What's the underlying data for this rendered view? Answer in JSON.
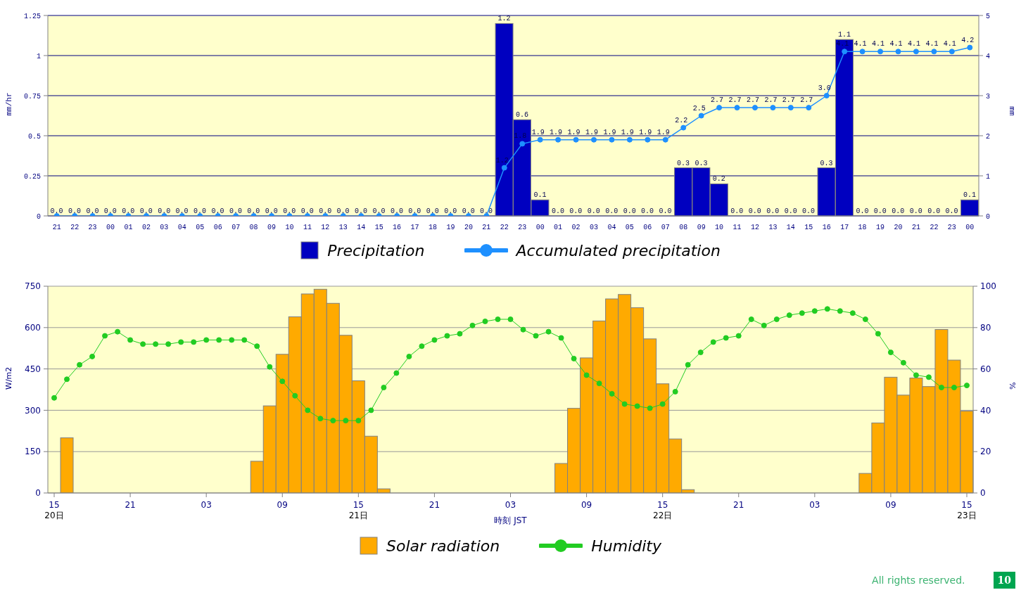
{
  "chart_data": [
    {
      "type": "bar",
      "ylabel": "mm/hr",
      "y2label": "mm",
      "categories": [
        "21",
        "22",
        "23",
        "00",
        "01",
        "02",
        "03",
        "04",
        "05",
        "06",
        "07",
        "08",
        "09",
        "10",
        "11",
        "12",
        "13",
        "14",
        "15",
        "16",
        "17",
        "18",
        "19",
        "20",
        "21",
        "22",
        "23",
        "00",
        "01",
        "02",
        "03",
        "04",
        "05",
        "06",
        "07",
        "08",
        "09",
        "10",
        "11",
        "12",
        "13",
        "14",
        "15",
        "16",
        "17",
        "18",
        "19",
        "20",
        "21",
        "22",
        "23",
        "00"
      ],
      "series": [
        {
          "name": "Precipitation",
          "color": "#0000c0",
          "values": [
            0,
            0,
            0,
            0,
            0,
            0,
            0,
            0,
            0,
            0,
            0,
            0,
            0,
            0,
            0,
            0,
            0,
            0,
            0,
            0,
            0,
            0,
            0,
            0,
            0,
            1.2,
            0.6,
            0.1,
            0,
            0,
            0,
            0,
            0,
            0,
            0,
            0.3,
            0.3,
            0.2,
            0,
            0,
            0,
            0,
            0,
            0.3,
            1.1,
            0,
            0,
            0,
            0,
            0,
            0,
            0.1
          ],
          "value_labels": [
            "0.0",
            "0.0",
            "0.0",
            "0.0",
            "0.0",
            "0.0",
            "0.0",
            "0.0",
            "0.0",
            "0.0",
            "0.0",
            "0.0",
            "0.0",
            "0.0",
            "0.0",
            "0.0",
            "0.0",
            "0.0",
            "0.0",
            "0.0",
            "0.0",
            "0.0",
            "0.0",
            "0.0",
            "0.0",
            "1.2",
            "0.6",
            "0.1",
            "0.0",
            "0.0",
            "0.0",
            "0.0",
            "0.0",
            "0.0",
            "0.0",
            "0.3",
            "0.3",
            "0.2",
            "0.0",
            "0.0",
            "0.0",
            "0.0",
            "0.0",
            "0.3",
            "1.1",
            "0.0",
            "0.0",
            "0.0",
            "0.0",
            "0.0",
            "0.0",
            "0.1"
          ]
        },
        {
          "name": "Accumulated precipitation",
          "type": "line",
          "axis": "y2",
          "color": "#1e90ff",
          "values": [
            0,
            0,
            0,
            0,
            0,
            0,
            0,
            0,
            0,
            0,
            0,
            0,
            0,
            0,
            0,
            0,
            0,
            0,
            0,
            0,
            0,
            0,
            0,
            0,
            0,
            1.2,
            1.8,
            1.9,
            1.9,
            1.9,
            1.9,
            1.9,
            1.9,
            1.9,
            1.9,
            2.2,
            2.5,
            2.7,
            2.7,
            2.7,
            2.7,
            2.7,
            2.7,
            3.0,
            4.1,
            4.1,
            4.1,
            4.1,
            4.1,
            4.1,
            4.1,
            4.2
          ],
          "value_labels": [
            null,
            null,
            null,
            null,
            null,
            null,
            null,
            null,
            null,
            null,
            null,
            null,
            null,
            null,
            null,
            null,
            null,
            null,
            null,
            null,
            null,
            null,
            null,
            null,
            null,
            "1.2",
            "1.8",
            "1.9",
            "1.9",
            "1.9",
            "1.9",
            "1.9",
            "1.9",
            "1.9",
            "1.9",
            "2.2",
            "2.5",
            "2.7",
            "2.7",
            "2.7",
            "2.7",
            "2.7",
            "2.7",
            "3.0",
            "4.1",
            "4.1",
            "4.1",
            "4.1",
            "4.1",
            "4.1",
            "4.1",
            "4.2"
          ]
        }
      ],
      "ylim": [
        0,
        1.25
      ],
      "yticks": [
        0,
        0.25,
        0.5,
        0.75,
        1,
        1.25
      ],
      "y2lim": [
        0,
        5
      ],
      "y2ticks": [
        0,
        1,
        2,
        3,
        4,
        5
      ],
      "grid": "y",
      "legend": "bottom",
      "marker": "circle"
    },
    {
      "type": "bar",
      "xlabel": "時刻 JST",
      "ylabel": "W/m2",
      "y2label": "%",
      "categories": [
        "15\n20日",
        null,
        null,
        null,
        null,
        null,
        "21",
        null,
        null,
        null,
        null,
        null,
        "03",
        null,
        null,
        null,
        null,
        null,
        "09",
        null,
        null,
        null,
        null,
        null,
        "15\n21日",
        null,
        null,
        null,
        null,
        null,
        "21",
        null,
        null,
        null,
        null,
        null,
        "03",
        null,
        null,
        null,
        null,
        null,
        "09",
        null,
        null,
        null,
        null,
        null,
        "15\n22日",
        null,
        null,
        null,
        null,
        null,
        "21",
        null,
        null,
        null,
        null,
        null,
        "03",
        null,
        null,
        null,
        null,
        null,
        "09",
        null,
        null,
        null,
        null,
        null,
        "15\n23日"
      ],
      "series": [
        {
          "name": "Solar radiation",
          "color": "#ffaa00",
          "values": [
            0,
            200,
            0,
            0,
            0,
            0,
            0,
            0,
            0,
            0,
            0,
            0,
            0,
            0,
            0,
            0,
            115,
            316,
            503,
            639,
            722,
            739,
            688,
            572,
            407,
            206,
            15,
            0,
            0,
            0,
            0,
            0,
            0,
            0,
            0,
            0,
            0,
            0,
            0,
            0,
            107,
            307,
            490,
            624,
            704,
            720,
            672,
            559,
            396,
            196,
            12,
            0,
            0,
            0,
            0,
            0,
            0,
            0,
            0,
            0,
            0,
            0,
            0,
            0,
            71,
            254,
            420,
            355,
            417,
            386,
            593,
            482,
            297
          ]
        },
        {
          "name": "Humidity",
          "type": "line",
          "axis": "y2",
          "color": "#22cc22",
          "values": [
            46,
            55,
            62,
            66,
            76,
            78,
            74,
            72,
            72,
            72,
            73,
            73,
            74,
            74,
            74,
            74,
            71,
            61,
            54,
            47,
            40,
            36,
            35,
            35,
            35,
            40,
            51,
            58,
            66,
            71,
            74,
            76,
            77,
            81,
            83,
            84,
            84,
            79,
            76,
            78,
            75,
            65,
            57,
            53,
            48,
            43,
            42,
            41,
            43,
            49,
            62,
            68,
            73,
            75,
            76,
            84,
            81,
            84,
            86,
            87,
            88,
            89,
            88,
            87,
            84,
            77,
            68,
            63,
            57,
            56,
            51,
            51,
            52
          ]
        }
      ],
      "ylim": [
        0,
        750
      ],
      "yticks": [
        0,
        150,
        300,
        450,
        600,
        750
      ],
      "y2lim": [
        0,
        100
      ],
      "y2ticks": [
        0,
        20,
        40,
        60,
        80,
        100
      ],
      "grid": "y",
      "legend": "bottom",
      "marker": "circle",
      "annotations": [
        "All rights reserved.",
        "10"
      ]
    }
  ]
}
